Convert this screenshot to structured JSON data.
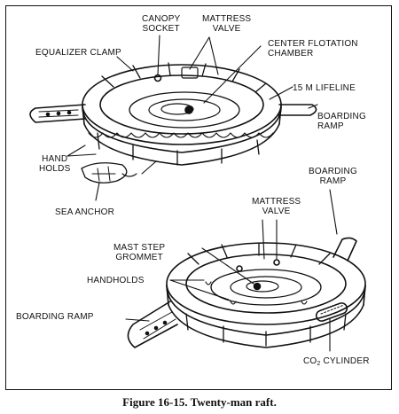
{
  "labels": {
    "canopy_socket": "CANOPY\nSOCKET",
    "mattress_valve_top": "MATTRESS\nVALVE",
    "equalizer_clamp": "EQUALIZER CLAMP",
    "center_flotation_chamber": "CENTER FLOTATION\nCHAMBER",
    "lifeline": "15 m LIFELINE",
    "boarding_ramp_top": "BOARDING\nRAMP",
    "hand_holds": "HAND\nHOLDS",
    "sea_anchor": "SEA ANCHOR",
    "boarding_ramp_mid": "BOARDING\nRAMP",
    "mattress_valve_bottom": "MATTRESS\nVALVE",
    "mast_step_grommet": "MAST STEP\nGROMMET",
    "handholds": "HANDHOLDS",
    "boarding_ramp_left": "BOARDING RAMP",
    "co2_cylinder_prefix": "CO",
    "co2_cylinder_sub": "2",
    "co2_cylinder_suffix": " CYLINDER"
  },
  "caption": "Figure 16-15. Twenty-man raft."
}
